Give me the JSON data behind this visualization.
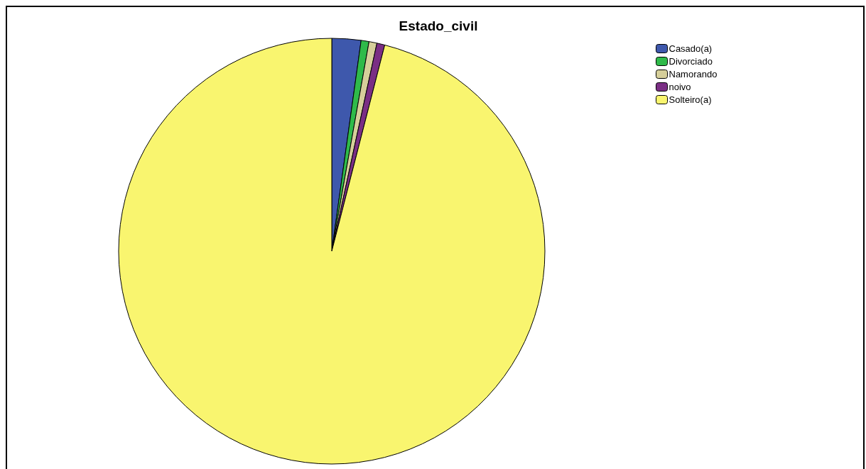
{
  "chart_data": {
    "type": "pie",
    "title": "Estado_civil",
    "categories": [
      "Casado(a)",
      "Divorciado",
      "Namorando",
      "noivo",
      "Solteiro(a)"
    ],
    "values": [
      2.2,
      0.6,
      0.6,
      0.6,
      96.0
    ],
    "colors": [
      "#3e58ac",
      "#2fba4a",
      "#d6cf9a",
      "#7a2e84",
      "#f9f56f"
    ],
    "legend": "top right"
  }
}
